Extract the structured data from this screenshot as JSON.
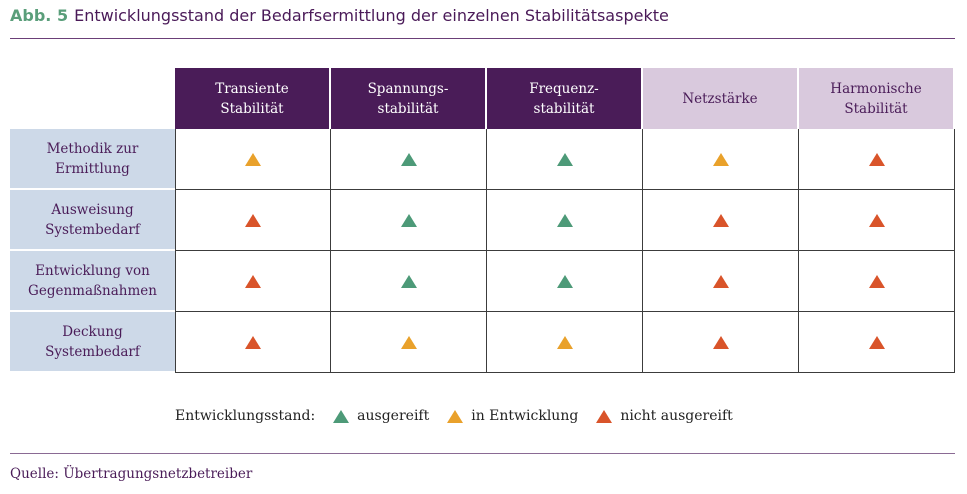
{
  "title": {
    "prefix": "Abb. 5",
    "text": "Entwicklungsstand der Bedarfsermittlung der einzelnen Stabilitätsaspekte"
  },
  "colors": {
    "green": "#4d9a78",
    "orange": "#e9a12b",
    "red": "#d9542a",
    "header_dark": "#4a1c58",
    "header_light": "#d9c9dd",
    "row_label_bg": "#cdd9e8"
  },
  "columns": [
    {
      "label_line1": "Transiente",
      "label_line2": "Stabilität",
      "style": "dark"
    },
    {
      "label_line1": "Spannungs-",
      "label_line2": "stabilität",
      "style": "dark"
    },
    {
      "label_line1": "Frequenz-",
      "label_line2": "stabilität",
      "style": "dark"
    },
    {
      "label_line1": "Netzstärke",
      "label_line2": "",
      "style": "light"
    },
    {
      "label_line1": "Harmonische",
      "label_line2": "Stabilität",
      "style": "light"
    }
  ],
  "rows": [
    {
      "label_line1": "Methodik zur",
      "label_line2": "Ermittlung",
      "status": [
        "in Entwicklung",
        "ausgereift",
        "ausgereift",
        "in Entwicklung",
        "nicht ausgereift"
      ]
    },
    {
      "label_line1": "Ausweisung",
      "label_line2": "Systembedarf",
      "status": [
        "nicht ausgereift",
        "ausgereift",
        "ausgereift",
        "nicht ausgereift",
        "nicht ausgereift"
      ]
    },
    {
      "label_line1": "Entwicklung von",
      "label_line2": "Gegenmaßnahmen",
      "status": [
        "nicht ausgereift",
        "ausgereift",
        "ausgereift",
        "nicht ausgereift",
        "nicht ausgereift"
      ]
    },
    {
      "label_line1": "Deckung",
      "label_line2": "Systembedarf",
      "status": [
        "nicht ausgereift",
        "in Entwicklung",
        "in Entwicklung",
        "nicht ausgereift",
        "nicht ausgereift"
      ]
    }
  ],
  "legend": {
    "label": "Entwicklungsstand:",
    "items": [
      {
        "text": "ausgereift",
        "color": "green"
      },
      {
        "text": "in Entwicklung",
        "color": "orange"
      },
      {
        "text": "nicht ausgereift",
        "color": "red"
      }
    ]
  },
  "source": "Quelle: Übertragungsnetzbetreiber"
}
